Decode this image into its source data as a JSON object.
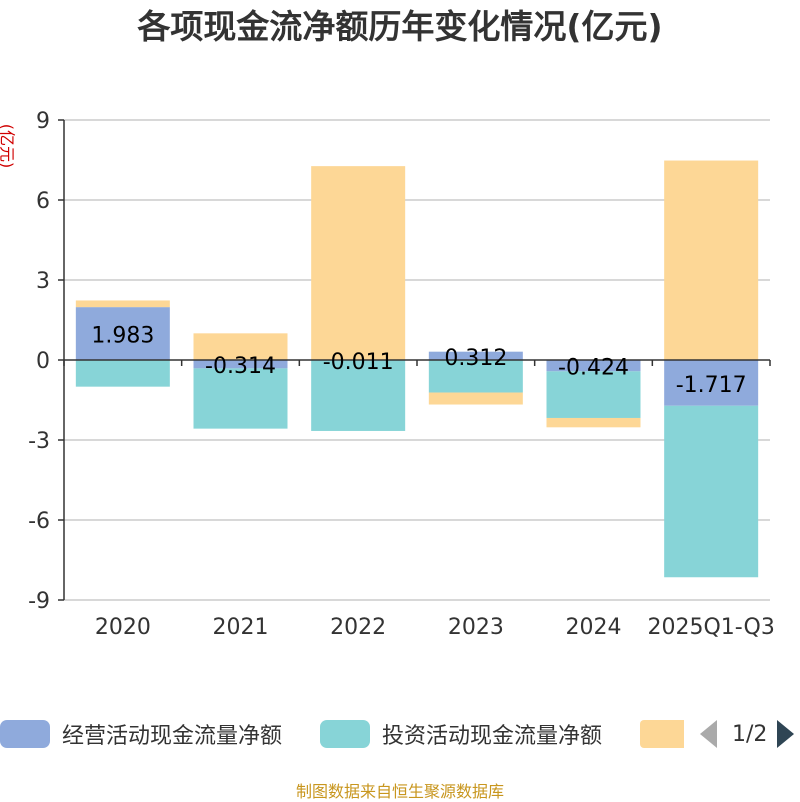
{
  "title": "各项现金流净额历年变化情况(亿元)",
  "unit_label": "(亿元)",
  "source": "制图数据来自恒生聚源数据库",
  "legend": {
    "items": [
      {
        "label": "经营活动现金流量净额",
        "color": "#8faadc"
      },
      {
        "label": "投资活动现金流量净额",
        "color": "#87d4d7"
      },
      {
        "label": "",
        "color": "#fdd796"
      }
    ],
    "page": "1/2"
  },
  "chart_data": {
    "type": "bar",
    "stacked": true,
    "title": "各项现金流净额历年变化情况(亿元)",
    "ylabel": "(亿元)",
    "ylim": [
      -9,
      9
    ],
    "yticks": [
      9,
      6,
      3,
      0,
      -3,
      -6,
      -9
    ],
    "categories": [
      "2020",
      "2021",
      "2022",
      "2023",
      "2024",
      "2025Q1-Q3"
    ],
    "series": [
      {
        "name": "经营活动现金流量净额",
        "color": "#8faadc",
        "values": [
          1.983,
          -0.314,
          -0.011,
          0.312,
          -0.424,
          -1.717
        ],
        "labels": [
          "1.983",
          "-0.314",
          "-0.011",
          "0.312",
          "-0.424",
          "-1.717"
        ]
      },
      {
        "name": "投资活动现金流量净额",
        "color": "#87d4d7",
        "values": [
          -1.0,
          -2.26,
          -2.65,
          -1.22,
          -1.75,
          -6.43
        ]
      },
      {
        "name": "",
        "color": "#fdd796",
        "values": [
          0.25,
          1.0,
          7.27,
          -0.45,
          -0.35,
          7.48
        ]
      }
    ]
  }
}
